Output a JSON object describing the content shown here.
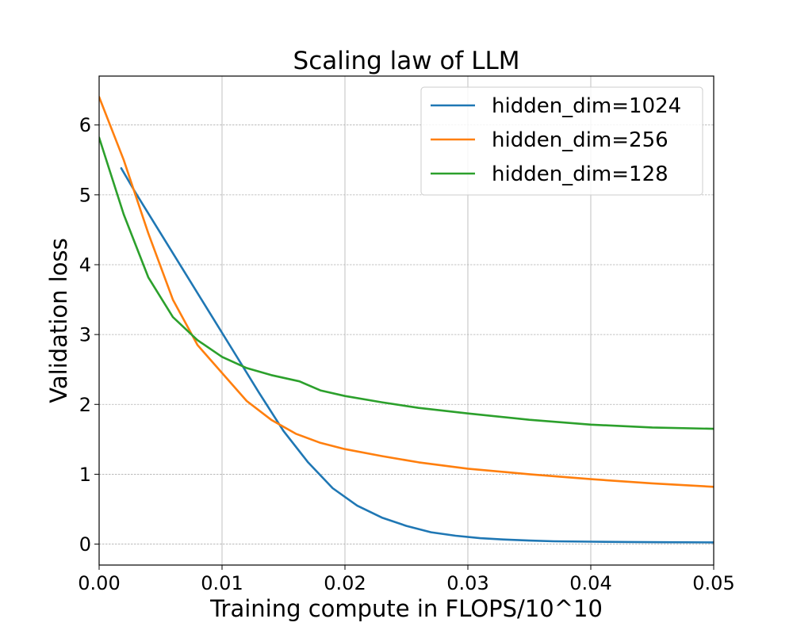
{
  "chart_data": {
    "type": "line",
    "title": "Scaling law of LLM",
    "xlabel": "Training compute in FLOPS/10^10",
    "ylabel": "Validation loss",
    "xlim": [
      0,
      0.05
    ],
    "ylim": [
      -0.3,
      6.7
    ],
    "xticks": [
      0,
      0.01,
      0.02,
      0.03,
      0.04,
      0.05
    ],
    "xtick_labels": [
      "0.00",
      "0.01",
      "0.02",
      "0.03",
      "0.04",
      "0.05"
    ],
    "yticks": [
      0,
      1,
      2,
      3,
      4,
      5,
      6
    ],
    "ytick_labels": [
      "0",
      "1",
      "2",
      "3",
      "4",
      "5",
      "6"
    ],
    "grid": true,
    "legend_position": "top-right",
    "series": [
      {
        "name": "hidden_dim=1024",
        "color": "#1f77b4",
        "x": [
          0.0018,
          0.003,
          0.005,
          0.007,
          0.009,
          0.011,
          0.013,
          0.015,
          0.017,
          0.019,
          0.021,
          0.023,
          0.025,
          0.027,
          0.029,
          0.031,
          0.033,
          0.035,
          0.037,
          0.04,
          0.043,
          0.046,
          0.05
        ],
        "y": [
          5.38,
          5.02,
          4.45,
          3.88,
          3.31,
          2.74,
          2.17,
          1.62,
          1.17,
          0.8,
          0.55,
          0.38,
          0.26,
          0.17,
          0.12,
          0.085,
          0.065,
          0.05,
          0.04,
          0.035,
          0.03,
          0.027,
          0.025
        ]
      },
      {
        "name": "hidden_dim=256",
        "color": "#ff7f0e",
        "x": [
          0,
          0.002,
          0.004,
          0.006,
          0.008,
          0.01,
          0.012,
          0.014,
          0.016,
          0.018,
          0.02,
          0.023,
          0.026,
          0.03,
          0.035,
          0.04,
          0.045,
          0.05
        ],
        "y": [
          6.4,
          5.5,
          4.45,
          3.5,
          2.85,
          2.45,
          2.05,
          1.78,
          1.58,
          1.45,
          1.36,
          1.26,
          1.17,
          1.08,
          1.0,
          0.93,
          0.87,
          0.82
        ]
      },
      {
        "name": "hidden_dim=128",
        "color": "#2ca02c",
        "x": [
          0,
          0.002,
          0.004,
          0.006,
          0.008,
          0.01,
          0.012,
          0.014,
          0.0163,
          0.018,
          0.02,
          0.023,
          0.026,
          0.03,
          0.035,
          0.04,
          0.045,
          0.05
        ],
        "y": [
          5.82,
          4.72,
          3.82,
          3.25,
          2.92,
          2.68,
          2.52,
          2.42,
          2.33,
          2.2,
          2.12,
          2.03,
          1.95,
          1.87,
          1.78,
          1.71,
          1.67,
          1.65
        ]
      }
    ]
  }
}
